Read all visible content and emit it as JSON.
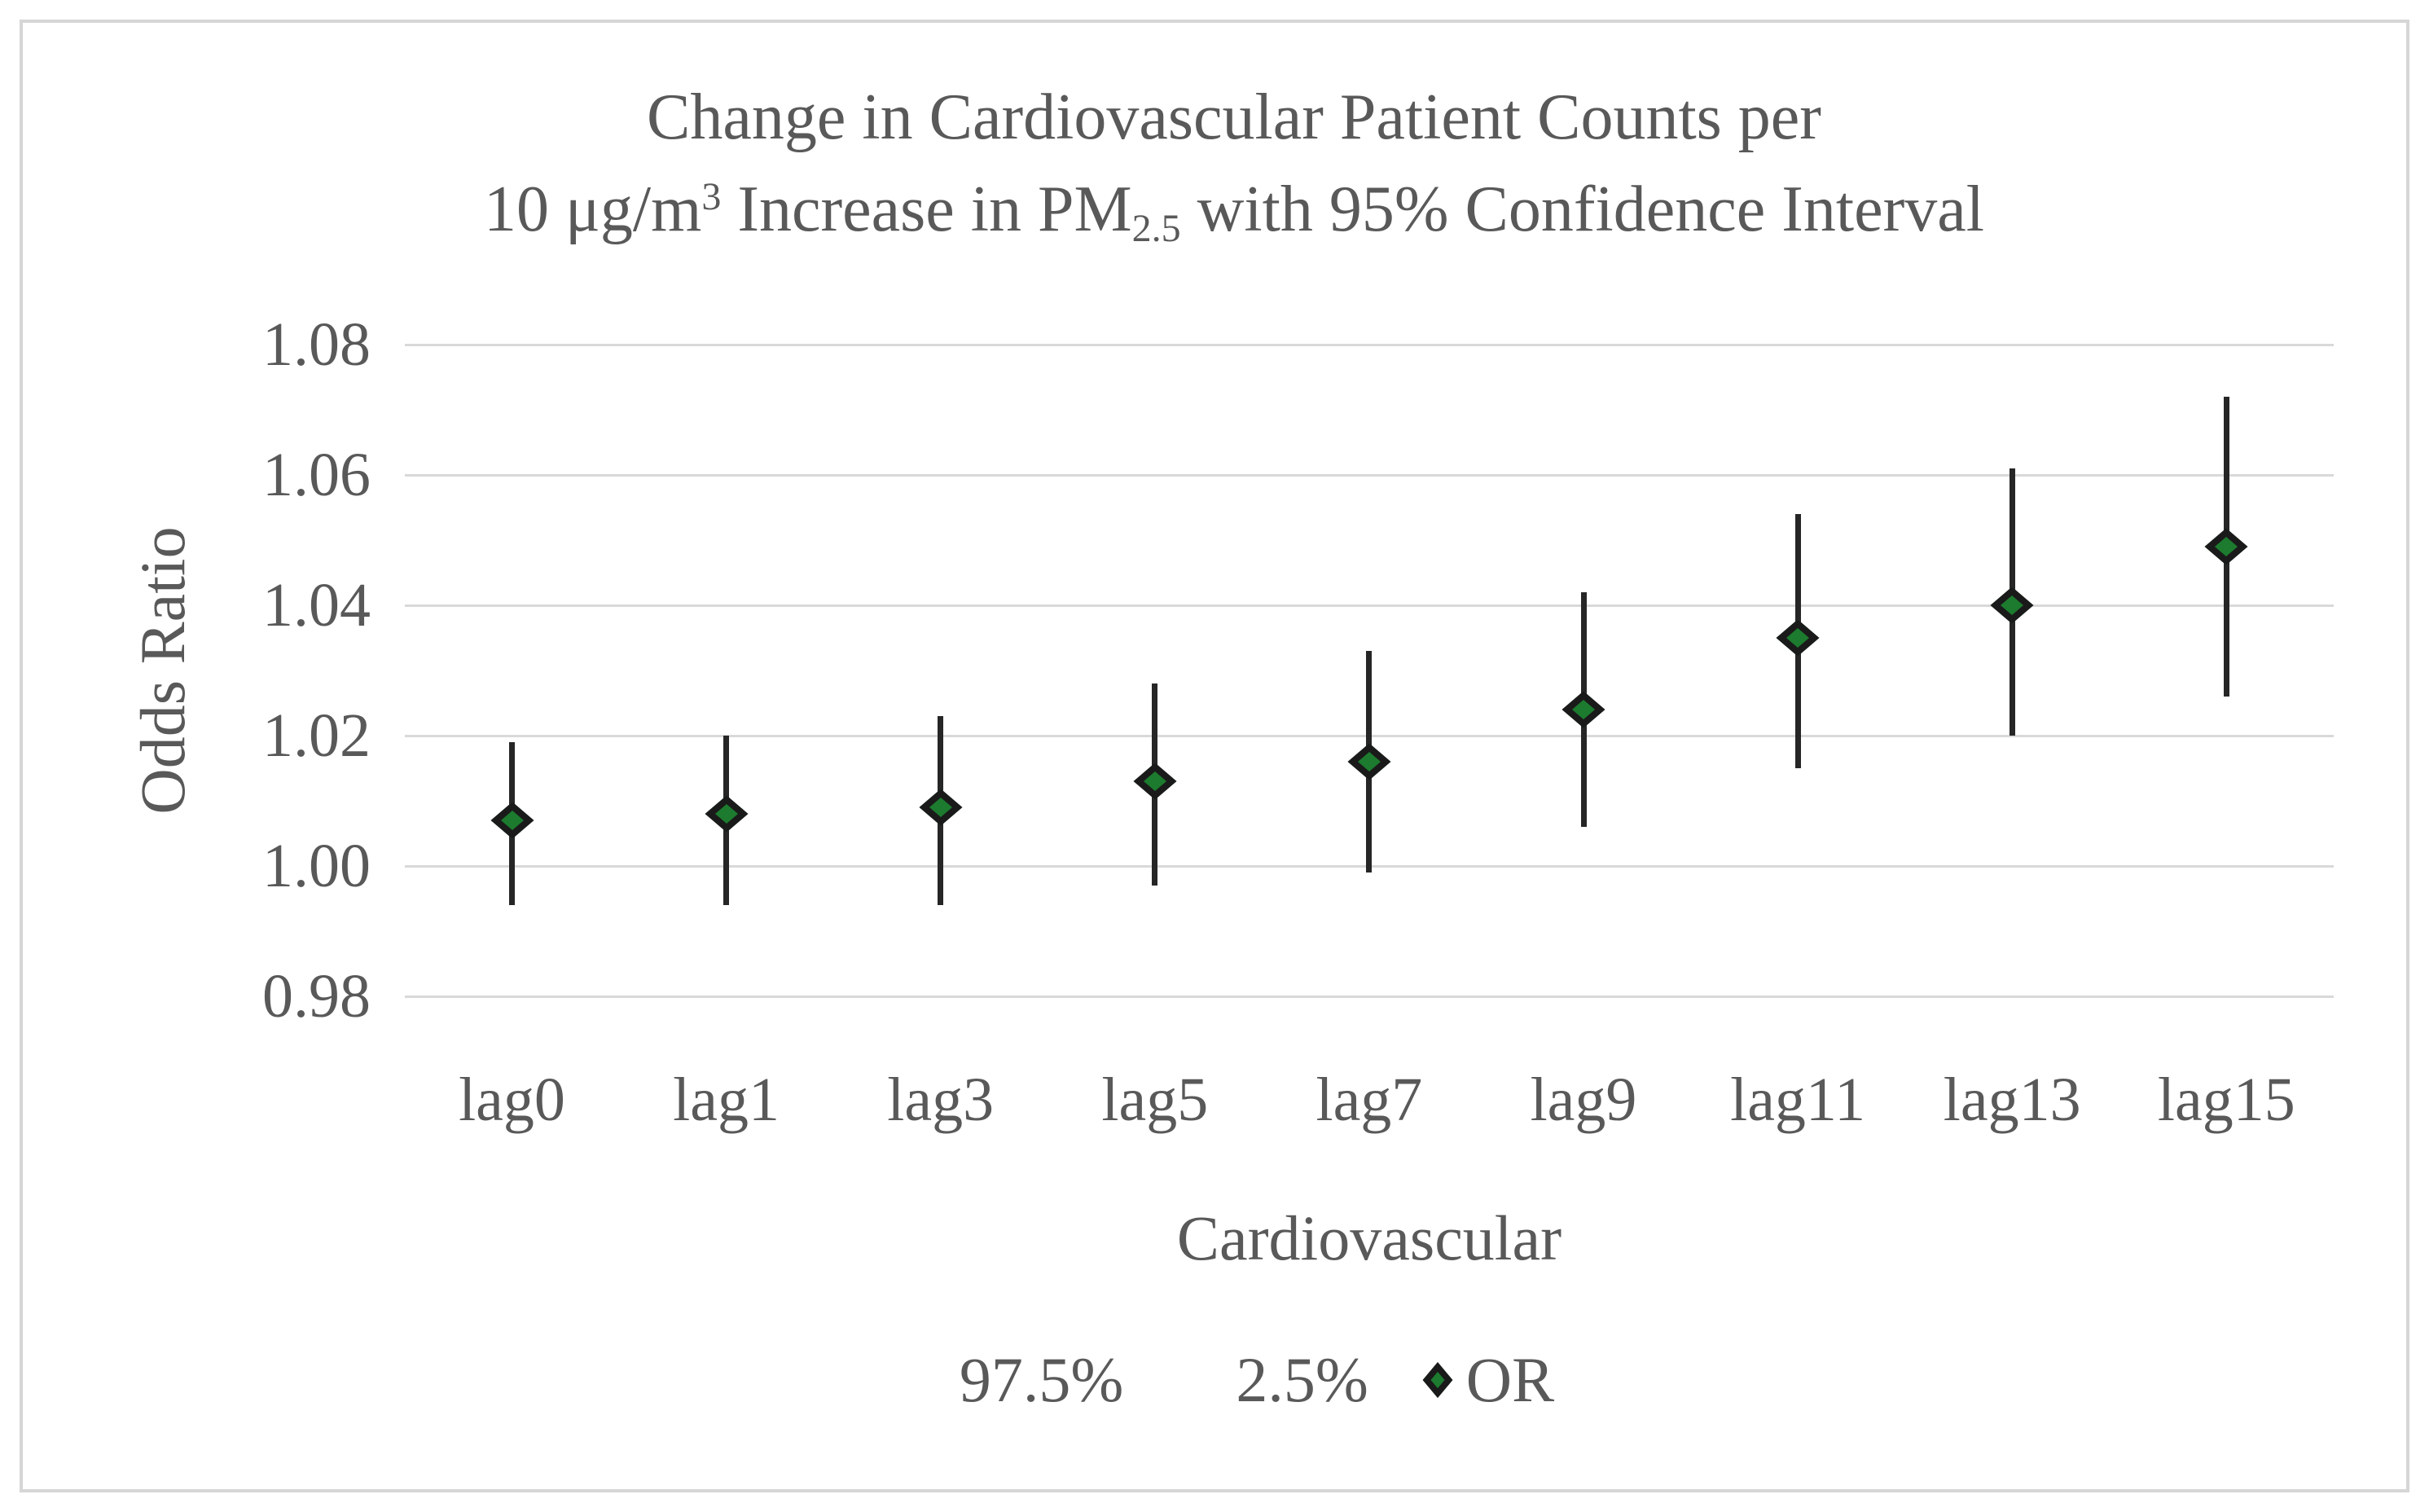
{
  "title": {
    "line1": "Change in Cardiovascular Patient Counts per",
    "line2_parts": [
      {
        "t": "10 μg/m"
      },
      {
        "t": "3",
        "s": "sup"
      },
      {
        "t": " Increase in PM"
      },
      {
        "t": "2.5",
        "s": "sub"
      },
      {
        "t": " with 95% Confidence Interval"
      }
    ]
  },
  "axes": {
    "y_title": "Odds Ratio",
    "x_title": "Cardiovascular"
  },
  "legend": {
    "items": [
      {
        "label": "97.5%",
        "marker": "none"
      },
      {
        "label": "2.5%",
        "marker": "none"
      },
      {
        "label": "OR",
        "marker": "diamond"
      }
    ]
  },
  "colors": {
    "marker_fill": "#1c7b2e",
    "marker_outline": "#1a1a1a",
    "error_bar": "#262626",
    "gridline": "#d9d9d9",
    "text": "#595959",
    "frame_border": "#d6d6d6"
  },
  "chart_data": {
    "type": "scatter",
    "title": "Change in Cardiovascular Patient Counts per 10 μg/m³ Increase in PM2.5 with 95% Confidence Interval",
    "categories": [
      "lag0",
      "lag1",
      "lag3",
      "lag5",
      "lag7",
      "lag9",
      "lag11",
      "lag13",
      "lag15"
    ],
    "series": [
      {
        "name": "OR",
        "values": [
          1.007,
          1.008,
          1.009,
          1.013,
          1.016,
          1.024,
          1.035,
          1.04,
          1.049
        ]
      },
      {
        "name": "97.5%",
        "values": [
          1.019,
          1.02,
          1.023,
          1.028,
          1.033,
          1.042,
          1.054,
          1.061,
          1.072
        ]
      },
      {
        "name": "2.5%",
        "values": [
          0.994,
          0.994,
          0.994,
          0.997,
          0.999,
          1.006,
          1.015,
          1.02,
          1.026
        ]
      }
    ],
    "xlabel": "Cardiovascular",
    "ylabel": "Odds Ratio",
    "ylim": [
      0.97,
      1.085
    ],
    "yticks": [
      0.98,
      1.0,
      1.02,
      1.04,
      1.06,
      1.08
    ],
    "ytick_decimals": 2,
    "grid": true,
    "legend_position": "bottom",
    "error_bars": "95% CI whiskers, no caps"
  }
}
